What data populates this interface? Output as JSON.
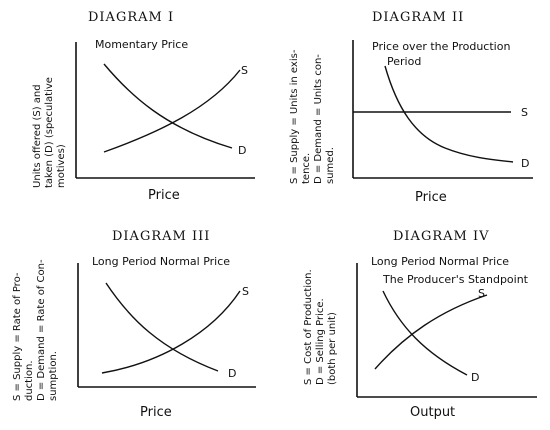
{
  "diagrams": [
    {
      "title": "DIAGRAM I",
      "subtitle": "Momentary Price",
      "subtitle2": "",
      "ylabel_lines": [
        "Units offered (S) and",
        "taken (D) (speculative",
        "motives)"
      ],
      "xlabel": "Price",
      "curves": [
        {
          "label": "S",
          "kind": "supply-rising"
        },
        {
          "label": "D",
          "kind": "demand-falling"
        }
      ]
    },
    {
      "title": "DIAGRAM II",
      "subtitle": "Price over the Production",
      "subtitle2": "Period",
      "ylabel_lines": [
        "S = Supply = Units in exis-",
        "tence.",
        "D = Demand = Units con-",
        "sumed."
      ],
      "xlabel": "Price",
      "curves": [
        {
          "label": "S",
          "kind": "supply-flat"
        },
        {
          "label": "D",
          "kind": "demand-falling"
        }
      ]
    },
    {
      "title": "DIAGRAM III",
      "subtitle": "Long Period Normal Price",
      "subtitle2": "",
      "ylabel_lines": [
        "S = Supply = Rate of Pro-",
        "duction.",
        "D = Demand = Rate of Con-",
        "sumption."
      ],
      "xlabel": "Price",
      "curves": [
        {
          "label": "S",
          "kind": "supply-rising"
        },
        {
          "label": "D",
          "kind": "demand-falling"
        }
      ]
    },
    {
      "title": "DIAGRAM IV",
      "subtitle": "Long Period Normal Price",
      "subtitle2": "The Producer's Standpoint",
      "ylabel_lines": [
        "S = Cost of Production.",
        "D = Selling Price.",
        "(both per unit)"
      ],
      "xlabel": "Output",
      "curves": [
        {
          "label": "S",
          "kind": "cost-rising"
        },
        {
          "label": "D",
          "kind": "price-falling"
        }
      ]
    }
  ]
}
